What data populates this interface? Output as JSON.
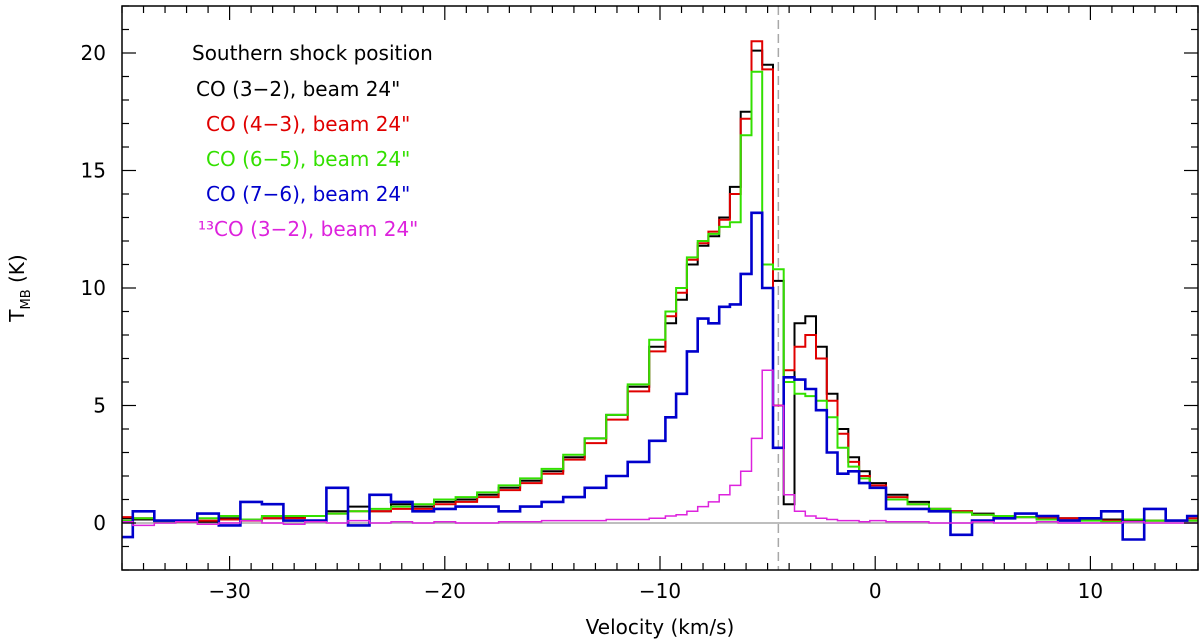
{
  "chart_data": {
    "type": "line",
    "step": true,
    "title": "",
    "xlabel": "Velocity (km/s)",
    "ylabel": {
      "main": "T",
      "sub": "MB",
      "unit": " (K)"
    },
    "xlim": [
      -35,
      15
    ],
    "ylim": [
      -2,
      22
    ],
    "xticks_major": [
      -30,
      -20,
      -10,
      0,
      10
    ],
    "yticks_major": [
      0,
      5,
      10,
      15,
      20
    ],
    "xtick_minor_step": 1,
    "ytick_minor_step": 1,
    "grid": false,
    "legend_placement": "top-left",
    "legend_heading": "Southern shock position",
    "reference_lines": [
      {
        "axis": "y",
        "value": 0,
        "color": "#a8a8a8",
        "style": "solid"
      },
      {
        "axis": "x",
        "value": -4.5,
        "color": "#a8a8a8",
        "style": "dashed"
      }
    ],
    "series": [
      {
        "name": "CO (3−2), beam 24\"",
        "color": "#000000",
        "stroke": 2,
        "x": [
          -35,
          -34,
          -33,
          -32,
          -31,
          -30,
          -29,
          -28,
          -27,
          -26,
          -25,
          -24,
          -23,
          -22,
          -21,
          -20,
          -19,
          -18,
          -17,
          -16,
          -15,
          -14,
          -13,
          -12,
          -11,
          -10,
          -9.5,
          -9,
          -8.5,
          -8,
          -7.5,
          -7,
          -6.5,
          -6,
          -5.5,
          -5,
          -4.5,
          -4,
          -3.5,
          -3,
          -2.5,
          -2,
          -1.5,
          -1,
          -0.5,
          0,
          1,
          2,
          3,
          4,
          5,
          6,
          7,
          8,
          9,
          10,
          11,
          12,
          13,
          14,
          15
        ],
        "y": [
          0.2,
          0.15,
          0.1,
          0.1,
          0.05,
          0.2,
          0.15,
          0.2,
          0.25,
          0.3,
          0.5,
          0.7,
          0.5,
          0.8,
          0.7,
          0.9,
          1.0,
          1.2,
          1.5,
          1.8,
          2.2,
          2.8,
          3.6,
          4.6,
          5.8,
          7.5,
          8.5,
          9.5,
          11,
          11.8,
          12.2,
          13,
          14.3,
          17.5,
          20.1,
          19.5,
          10.3,
          0.8,
          8.5,
          8.8,
          7.5,
          5.5,
          4.0,
          2.8,
          2.2,
          1.7,
          1.2,
          0.9,
          0.6,
          0.5,
          0.4,
          0.3,
          0.25,
          0.2,
          0.2,
          0.2,
          0.15,
          0.1,
          0.1,
          0.1,
          0.1
        ]
      },
      {
        "name": "CO (4−3), beam 24\"",
        "color": "#e00000",
        "stroke": 2,
        "x": [
          -35,
          -34,
          -33,
          -32,
          -31,
          -30,
          -29,
          -28,
          -27,
          -26,
          -25,
          -24,
          -23,
          -22,
          -21,
          -20,
          -19,
          -18,
          -17,
          -16,
          -15,
          -14,
          -13,
          -12,
          -11,
          -10,
          -9.5,
          -9,
          -8.5,
          -8,
          -7.5,
          -7,
          -6.5,
          -6,
          -5.5,
          -5,
          -4.5,
          -4,
          -3.5,
          -3,
          -2.5,
          -2,
          -1.5,
          -1,
          -0.5,
          0,
          1,
          2,
          3,
          4,
          5,
          6,
          7,
          8,
          9,
          10,
          11,
          12,
          13,
          14,
          15
        ],
        "y": [
          0.25,
          0.2,
          0.1,
          0.05,
          0.1,
          0.15,
          0.1,
          0.2,
          0.2,
          0.3,
          0.4,
          0.5,
          0.5,
          0.6,
          0.6,
          0.8,
          0.9,
          1.1,
          1.4,
          1.7,
          2.1,
          2.7,
          3.4,
          4.4,
          5.6,
          7.3,
          8.8,
          9.8,
          11.2,
          11.9,
          12.4,
          12.9,
          14.0,
          17.2,
          20.5,
          19.3,
          5.0,
          6.5,
          7.5,
          8.0,
          7.0,
          5.2,
          3.8,
          2.6,
          2.0,
          1.6,
          1.1,
          0.8,
          0.6,
          0.5,
          0.35,
          0.3,
          0.25,
          0.2,
          0.2,
          0.15,
          0.1,
          0.15,
          0.1,
          0.1,
          0.2
        ]
      },
      {
        "name": "CO (6−5), beam 24\"",
        "color": "#33e000",
        "stroke": 2,
        "x": [
          -35,
          -34,
          -33,
          -32,
          -31,
          -30,
          -29,
          -28,
          -27,
          -26,
          -25,
          -24,
          -23,
          -22,
          -21,
          -20,
          -19,
          -18,
          -17,
          -16,
          -15,
          -14,
          -13,
          -12,
          -11,
          -10,
          -9.5,
          -9,
          -8.5,
          -8,
          -7.5,
          -7,
          -6.5,
          -6,
          -5.5,
          -5,
          -4.5,
          -4,
          -3.5,
          -3,
          -2.5,
          -2,
          -1.5,
          -1,
          -0.5,
          0,
          1,
          2,
          3,
          4,
          5,
          6,
          7,
          8,
          9,
          10,
          11,
          12,
          13,
          14,
          15
        ],
        "y": [
          0.1,
          0.2,
          0.05,
          0.1,
          0.2,
          0.3,
          0.15,
          0.3,
          0.3,
          0.3,
          0.4,
          0.5,
          0.6,
          0.7,
          0.8,
          1.0,
          1.1,
          1.3,
          1.6,
          1.9,
          2.3,
          2.9,
          3.6,
          4.6,
          5.9,
          7.8,
          9.0,
          10.0,
          11.3,
          12.0,
          12.3,
          12.6,
          12.8,
          16.5,
          19.2,
          11.0,
          10.8,
          6.0,
          5.5,
          5.4,
          5.2,
          4.5,
          3.2,
          2.4,
          1.9,
          1.5,
          1.0,
          0.8,
          0.6,
          0.45,
          0.35,
          0.3,
          0.25,
          0.15,
          0.1,
          0.1,
          0.05,
          0.15,
          0.1,
          0.1,
          0.1
        ]
      },
      {
        "name": "CO (7−6), beam 24\"",
        "color": "#0000cc",
        "stroke": 2.6,
        "x": [
          -35,
          -34,
          -33,
          -32,
          -31,
          -30,
          -29,
          -28,
          -27,
          -26,
          -25,
          -24,
          -23,
          -22,
          -21,
          -20,
          -19,
          -18,
          -17,
          -16,
          -15,
          -14,
          -13,
          -12,
          -11,
          -10,
          -9.5,
          -9,
          -8.5,
          -8,
          -7.5,
          -7,
          -6.5,
          -6,
          -5.5,
          -5,
          -4.5,
          -4,
          -3.5,
          -3,
          -2.5,
          -2,
          -1.5,
          -1,
          -0.5,
          0,
          1,
          2,
          3,
          4,
          5,
          6,
          7,
          8,
          9,
          10,
          11,
          12,
          13,
          14,
          15
        ],
        "y": [
          -0.6,
          0.5,
          0.1,
          0.1,
          0.4,
          -0.1,
          0.9,
          0.8,
          0.1,
          0.1,
          1.5,
          -0.1,
          1.2,
          0.9,
          0.5,
          0.6,
          0.7,
          0.7,
          0.5,
          0.7,
          0.9,
          1.1,
          1.5,
          2.0,
          2.6,
          3.5,
          4.5,
          5.5,
          7.3,
          8.7,
          8.5,
          9.2,
          9.3,
          10.6,
          13.2,
          10.0,
          3.2,
          6.2,
          6.1,
          5.7,
          4.8,
          3.0,
          2.1,
          2.2,
          1.7,
          1.5,
          0.6,
          0.6,
          0.5,
          -0.5,
          0.1,
          0.2,
          0.4,
          0.3,
          0.1,
          0.2,
          0.5,
          -0.7,
          0.6,
          0.1,
          0.3
        ]
      },
      {
        "name": "¹³CO (3−2), beam 24\"",
        "color": "#dd22dd",
        "stroke": 1.5,
        "x": [
          -35,
          -34,
          -33,
          -32,
          -31,
          -30,
          -29,
          -28,
          -27,
          -26,
          -25,
          -24,
          -23,
          -22,
          -21,
          -20,
          -19,
          -18,
          -17,
          -16,
          -15,
          -14,
          -13,
          -12,
          -11,
          -10,
          -9.5,
          -9,
          -8.5,
          -8,
          -7.5,
          -7,
          -6.5,
          -6,
          -5.5,
          -5,
          -4.5,
          -4,
          -3.5,
          -3,
          -2.5,
          -2,
          -1.5,
          -1,
          -0.5,
          0,
          1,
          2,
          3,
          4,
          5,
          6,
          7,
          8,
          9,
          10,
          11,
          12,
          13,
          14,
          15
        ],
        "y": [
          0.05,
          -0.1,
          0.0,
          0.05,
          -0.05,
          0.0,
          0.1,
          0.0,
          -0.05,
          0.05,
          0.0,
          0.1,
          0.0,
          0.05,
          0.0,
          0.05,
          0.0,
          0.0,
          0.05,
          0.05,
          0.1,
          0.1,
          0.1,
          0.15,
          0.15,
          0.2,
          0.3,
          0.35,
          0.5,
          0.7,
          0.9,
          1.2,
          1.6,
          2.2,
          3.6,
          6.5,
          5.0,
          1.2,
          0.5,
          0.3,
          0.2,
          0.15,
          0.1,
          0.1,
          0.05,
          0.1,
          0.05,
          0.05,
          0.0,
          0.0,
          0.05,
          0.0,
          0.0,
          0.05,
          0.0,
          0.0,
          0.0,
          0.05,
          0.0,
          0.0,
          0.0
        ]
      }
    ]
  }
}
